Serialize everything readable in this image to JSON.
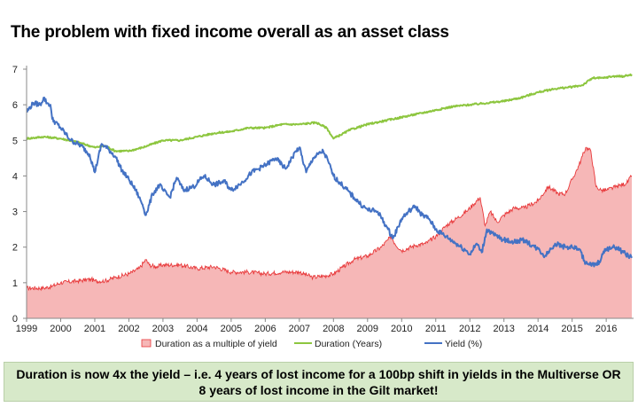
{
  "title": "The problem with fixed income overall as an asset class",
  "banner_text": "Duration is now 4x the yield – i.e. 4 years of lost income for a 100bp shift in yields in the Multiverse OR 8 years of lost income in the Gilt market!",
  "colors": {
    "duration_multiple": "#f6b7b7",
    "duration_multiple_line": "#e8383a",
    "duration_years": "#8dc63f",
    "yield": "#4472c4",
    "banner_bg": "#d7e9c9"
  },
  "chart_data": {
    "type": "line",
    "title": "",
    "xlabel": "",
    "ylabel": "",
    "x_tick_labels": [
      "1999",
      "2000",
      "2001",
      "2002",
      "2003",
      "2004",
      "2005",
      "2006",
      "2007",
      "2008",
      "2009",
      "2010",
      "2011",
      "2012",
      "2013",
      "2014",
      "2015",
      "2016"
    ],
    "y_ticks": [
      0,
      1,
      2,
      3,
      4,
      5,
      6,
      7
    ],
    "xlim": [
      1999.0,
      2016.75
    ],
    "ylim": [
      0,
      7
    ],
    "grid": false,
    "legend_position": "bottom",
    "series": [
      {
        "name": "Duration as a multiple of yield",
        "type": "area",
        "x": [
          1999.0,
          1999.5,
          1999.75,
          2000.0,
          2000.5,
          2000.9,
          2001.0,
          2001.3,
          2001.6,
          2002.0,
          2002.3,
          2002.5,
          2002.6,
          2002.8,
          2003.0,
          2003.5,
          2004.0,
          2004.5,
          2005.0,
          2005.5,
          2006.0,
          2006.5,
          2007.0,
          2007.4,
          2007.8,
          2008.0,
          2008.3,
          2008.6,
          2009.0,
          2009.4,
          2009.7,
          2009.8,
          2010.0,
          2010.4,
          2010.7,
          2011.0,
          2011.3,
          2011.6,
          2011.9,
          2012.1,
          2012.3,
          2012.45,
          2012.6,
          2012.8,
          2013.0,
          2013.3,
          2013.6,
          2014.0,
          2014.3,
          2014.6,
          2014.8,
          2015.0,
          2015.2,
          2015.4,
          2015.55,
          2015.7,
          2015.85,
          2016.0,
          2016.3,
          2016.6,
          2016.75
        ],
        "y": [
          0.85,
          0.85,
          0.9,
          1.0,
          1.05,
          1.1,
          1.05,
          1.05,
          1.15,
          1.25,
          1.4,
          1.65,
          1.5,
          1.45,
          1.5,
          1.5,
          1.4,
          1.45,
          1.3,
          1.3,
          1.25,
          1.3,
          1.3,
          1.15,
          1.2,
          1.25,
          1.45,
          1.65,
          1.75,
          2.0,
          2.3,
          2.1,
          1.9,
          2.05,
          2.1,
          2.3,
          2.6,
          2.8,
          3.0,
          3.2,
          3.4,
          2.6,
          3.0,
          2.7,
          2.9,
          3.1,
          3.1,
          3.3,
          3.7,
          3.5,
          3.5,
          3.9,
          4.3,
          4.8,
          4.7,
          3.7,
          3.6,
          3.6,
          3.7,
          3.8,
          4.0
        ]
      },
      {
        "name": "Duration (Years)",
        "type": "line",
        "x": [
          1999.0,
          1999.5,
          2000.0,
          2000.5,
          2001.0,
          2001.3,
          2001.6,
          2002.0,
          2002.4,
          2003.0,
          2003.5,
          2004.0,
          2004.5,
          2005.0,
          2005.5,
          2006.0,
          2006.5,
          2007.0,
          2007.5,
          2007.8,
          2008.0,
          2008.2,
          2008.5,
          2009.0,
          2009.5,
          2010.0,
          2010.5,
          2011.0,
          2011.5,
          2012.0,
          2012.5,
          2013.0,
          2013.5,
          2014.0,
          2014.5,
          2015.0,
          2015.3,
          2015.6,
          2015.9,
          2016.2,
          2016.5,
          2016.75
        ],
        "y": [
          5.05,
          5.1,
          5.05,
          4.95,
          4.8,
          4.85,
          4.7,
          4.7,
          4.8,
          5.0,
          5.0,
          5.1,
          5.2,
          5.25,
          5.35,
          5.35,
          5.45,
          5.45,
          5.5,
          5.35,
          5.05,
          5.15,
          5.3,
          5.45,
          5.55,
          5.65,
          5.75,
          5.85,
          5.95,
          6.0,
          6.05,
          6.1,
          6.2,
          6.35,
          6.45,
          6.5,
          6.55,
          6.75,
          6.75,
          6.8,
          6.8,
          6.85
        ]
      },
      {
        "name": "Yield (%)",
        "type": "line",
        "x": [
          1999.0,
          1999.2,
          1999.4,
          1999.5,
          1999.6,
          1999.7,
          1999.75,
          2000.0,
          2000.3,
          2000.6,
          2000.85,
          2001.0,
          2001.2,
          2001.4,
          2001.6,
          2001.8,
          2002.0,
          2002.2,
          2002.4,
          2002.5,
          2002.7,
          2002.9,
          2003.0,
          2003.2,
          2003.4,
          2003.6,
          2003.9,
          2004.2,
          2004.5,
          2004.8,
          2005.0,
          2005.3,
          2005.6,
          2006.0,
          2006.3,
          2006.6,
          2006.9,
          2007.0,
          2007.2,
          2007.4,
          2007.7,
          2007.85,
          2008.0,
          2008.2,
          2008.5,
          2008.8,
          2009.0,
          2009.3,
          2009.6,
          2009.75,
          2010.0,
          2010.2,
          2010.4,
          2010.6,
          2010.8,
          2011.0,
          2011.3,
          2011.6,
          2011.9,
          2012.0,
          2012.2,
          2012.35,
          2012.5,
          2012.7,
          2013.0,
          2013.3,
          2013.6,
          2013.9,
          2014.0,
          2014.2,
          2014.5,
          2014.8,
          2015.0,
          2015.2,
          2015.4,
          2015.55,
          2015.7,
          2015.8,
          2015.9,
          2016.0,
          2016.3,
          2016.5,
          2016.75
        ],
        "y": [
          5.8,
          6.05,
          6.0,
          6.2,
          6.05,
          6.0,
          5.6,
          5.35,
          5.0,
          4.85,
          4.6,
          4.1,
          4.9,
          4.75,
          4.55,
          4.15,
          3.9,
          3.6,
          3.2,
          2.9,
          3.5,
          3.75,
          3.6,
          3.4,
          3.95,
          3.6,
          3.7,
          4.0,
          3.75,
          3.85,
          3.6,
          3.8,
          4.1,
          4.3,
          4.5,
          4.2,
          4.7,
          4.8,
          4.1,
          4.5,
          4.7,
          4.4,
          4.0,
          3.8,
          3.5,
          3.2,
          3.05,
          3.0,
          2.5,
          2.25,
          2.8,
          3.0,
          3.15,
          2.9,
          2.8,
          2.5,
          2.3,
          2.1,
          1.9,
          1.8,
          2.1,
          1.85,
          2.5,
          2.35,
          2.2,
          2.15,
          2.2,
          2.0,
          1.95,
          1.75,
          2.1,
          2.0,
          2.0,
          1.95,
          1.55,
          1.5,
          1.5,
          1.6,
          1.8,
          1.95,
          2.0,
          1.85,
          1.7
        ]
      }
    ]
  }
}
